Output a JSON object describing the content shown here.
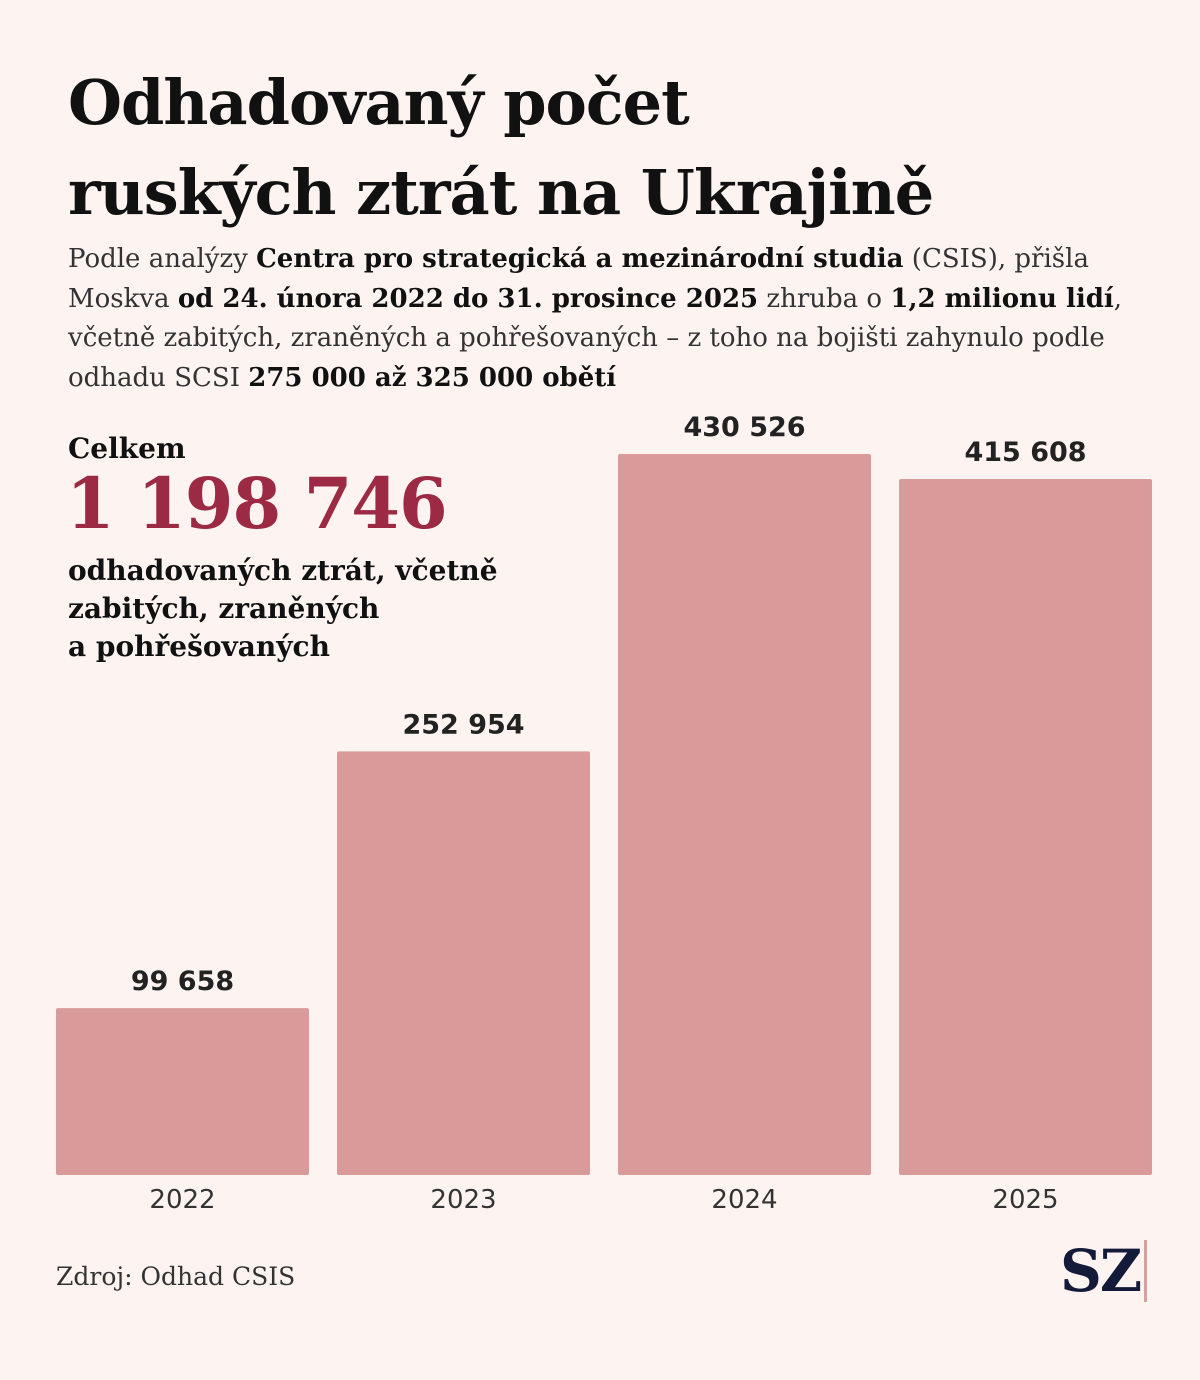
{
  "header": {
    "title_line1": "Odhadovaný počet",
    "title_line2": "ruských ztrát na Ukrajině"
  },
  "intro": {
    "t1": "Podle analýzy ",
    "b1": "Centra pro strategická a mezinárodní studia",
    "t2": " (CSIS), přišla Moskva ",
    "b2": "od 24. února 2022 do 31. prosince 2025",
    "t3": " zhruba o ",
    "b3": "1,2 milionu lidí",
    "t4": ", včetně zabitých, zraněných a pohřešovaných – z toho na bojišti zahynulo podle odhadu SCSI ",
    "b4": "275 000 až 325 000 obětí"
  },
  "total": {
    "label": "Celkem",
    "value": "1 198 746",
    "desc_line1": "odhadovaných ztrát, včetně",
    "desc_line2": "zabitých, zraněných",
    "desc_line3": "a pohřešovaných"
  },
  "chart_data": {
    "type": "bar",
    "categories": [
      "2022",
      "2023",
      "2024",
      "2025"
    ],
    "values": [
      99658,
      252954,
      430526,
      415608
    ],
    "labels": [
      "99 658",
      "252 954",
      "430 526",
      "415 608"
    ],
    "ylim": [
      0,
      430526
    ],
    "title": "Odhadovaný počet ruských ztrát na Ukrajině",
    "xlabel": "",
    "ylabel": "",
    "grid": false
  },
  "colors": {
    "bar": "#d99a9a",
    "accent": "#9c2a44",
    "background": "#fdf3f1",
    "logo": "#141a3a"
  },
  "footer": {
    "source": "Zdroj: Odhad CSIS",
    "logo": "SZ"
  }
}
